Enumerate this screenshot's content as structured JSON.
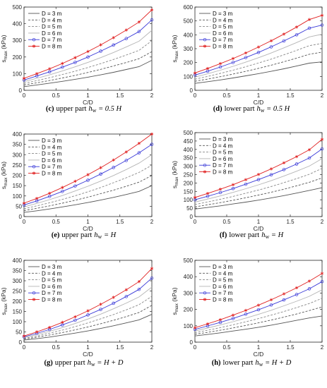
{
  "figure": {
    "panel_count": 6
  },
  "chart_data": [
    {
      "type": "line",
      "caption": {
        "letter": "(c)",
        "text": "upper part",
        "var_h": "h",
        "var_sub": "w",
        "rest": " = 0.5 H"
      },
      "xlabel": "C/D",
      "ylabel": "s",
      "ylabel_sub": "max",
      "ylabel_unit": " (kPa)",
      "xlim": [
        0,
        2
      ],
      "ylim": [
        0,
        500
      ],
      "xticks": [
        "0",
        "0.5",
        "1",
        "1.5",
        "2"
      ],
      "yticks": [
        "0",
        "100",
        "200",
        "300",
        "400",
        "500"
      ],
      "legend": {
        "placement": "top-left",
        "entries": [
          "D = 3 m",
          "D = 4 m",
          "D = 5 m",
          "D = 6 m",
          "D = 7 m",
          "D = 8 m"
        ]
      },
      "x": [
        0,
        0.2,
        0.4,
        0.6,
        0.8,
        1.0,
        1.2,
        1.4,
        1.6,
        1.8,
        2.0
      ],
      "series": [
        {
          "name": "D = 3 m",
          "values": [
            22,
            32,
            43,
            54,
            66,
            79,
            93,
            108,
            125,
            142,
            180
          ]
        },
        {
          "name": "D = 4 m",
          "values": [
            32,
            45,
            59,
            74,
            90,
            107,
            126,
            146,
            167,
            190,
            232
          ]
        },
        {
          "name": "D = 5 m",
          "values": [
            42,
            58,
            76,
            95,
            115,
            137,
            160,
            185,
            212,
            240,
            298
          ]
        },
        {
          "name": "D = 6 m",
          "values": [
            52,
            72,
            93,
            116,
            141,
            168,
            196,
            227,
            260,
            295,
            360
          ]
        },
        {
          "name": "D = 7 m",
          "values": [
            62,
            86,
            111,
            139,
            168,
            200,
            235,
            272,
            311,
            353,
            423
          ]
        },
        {
          "name": "D = 8 m",
          "values": [
            72,
            100,
            129,
            161,
            196,
            233,
            273,
            316,
            362,
            410,
            483
          ]
        }
      ]
    },
    {
      "type": "line",
      "caption": {
        "letter": "(d)",
        "text": "lower part",
        "var_h": "h",
        "var_sub": "w",
        "rest": " = 0.5 H"
      },
      "xlabel": "C/D",
      "ylabel": "s",
      "ylabel_sub": "max",
      "ylabel_unit": " (kPa)",
      "xlim": [
        0,
        2
      ],
      "ylim": [
        0,
        600
      ],
      "xticks": [
        "0",
        "0.5",
        "1",
        "1.5",
        "2"
      ],
      "yticks": [
        "0",
        "100",
        "200",
        "300",
        "400",
        "500",
        "600"
      ],
      "legend": {
        "placement": "top-left",
        "entries": [
          "D = 3 m",
          "D = 4 m",
          "D = 5 m",
          "D = 6 m",
          "D = 7 m",
          "D = 8 m"
        ]
      },
      "x": [
        0,
        0.2,
        0.4,
        0.6,
        0.8,
        1.0,
        1.2,
        1.4,
        1.6,
        1.8,
        2.0
      ],
      "series": [
        {
          "name": "D = 3 m",
          "values": [
            50,
            62,
            75,
            89,
            104,
            120,
            137,
            155,
            175,
            196,
            205
          ]
        },
        {
          "name": "D = 4 m",
          "values": [
            65,
            81,
            98,
            117,
            137,
            158,
            181,
            206,
            232,
            260,
            275
          ]
        },
        {
          "name": "D = 5 m",
          "values": [
            80,
            100,
            122,
            145,
            170,
            197,
            225,
            256,
            288,
            322,
            338
          ]
        },
        {
          "name": "D = 6 m",
          "values": [
            95,
            119,
            145,
            173,
            203,
            235,
            269,
            306,
            344,
            385,
            404
          ]
        },
        {
          "name": "D = 7 m",
          "values": [
            110,
            138,
            168,
            201,
            236,
            273,
            313,
            356,
            400,
            448,
            470
          ]
        },
        {
          "name": "D = 8 m",
          "values": [
            125,
            157,
            192,
            229,
            269,
            312,
            357,
            405,
            456,
            510,
            540
          ]
        }
      ]
    },
    {
      "type": "line",
      "caption": {
        "letter": "(e)",
        "text": "upper part",
        "var_h": "h",
        "var_sub": "w",
        "rest": " = H"
      },
      "xlabel": "C/D",
      "ylabel": "s",
      "ylabel_sub": "max",
      "ylabel_unit": " (kPa)",
      "xlim": [
        0,
        2
      ],
      "ylim": [
        0,
        400
      ],
      "xticks": [
        "0",
        "0.5",
        "1",
        "1.5",
        "2"
      ],
      "yticks": [
        "0",
        "50",
        "100",
        "150",
        "200",
        "250",
        "300",
        "350",
        "400"
      ],
      "legend": {
        "placement": "top-left",
        "entries": [
          "D = 3 m",
          "D = 4 m",
          "D = 5 m",
          "D = 6 m",
          "D = 7 m",
          "D = 8 m"
        ]
      },
      "x": [
        0,
        0.2,
        0.4,
        0.6,
        0.8,
        1.0,
        1.2,
        1.4,
        1.6,
        1.8,
        2.0
      ],
      "series": [
        {
          "name": "D = 3 m",
          "values": [
            20,
            28,
            37,
            47,
            57,
            68,
            80,
            93,
            107,
            122,
            150
          ]
        },
        {
          "name": "D = 4 m",
          "values": [
            29,
            40,
            52,
            65,
            79,
            94,
            111,
            128,
            147,
            167,
            199
          ]
        },
        {
          "name": "D = 5 m",
          "values": [
            38,
            52,
            67,
            83,
            101,
            120,
            141,
            164,
            188,
            214,
            249
          ]
        },
        {
          "name": "D = 6 m",
          "values": [
            47,
            64,
            82,
            102,
            124,
            147,
            172,
            199,
            228,
            259,
            300
          ]
        },
        {
          "name": "D = 7 m",
          "values": [
            56,
            76,
            98,
            122,
            148,
            176,
            206,
            238,
            272,
            309,
            350
          ]
        },
        {
          "name": "D = 8 m",
          "values": [
            65,
            88,
            113,
            141,
            171,
            203,
            237,
            274,
            313,
            355,
            400
          ]
        }
      ]
    },
    {
      "type": "line",
      "caption": {
        "letter": "(f)",
        "text": "lower part",
        "var_h": "h",
        "var_sub": "w",
        "rest": " = H"
      },
      "xlabel": "C/D",
      "ylabel": "s",
      "ylabel_sub": "max",
      "ylabel_unit": " (kPa)",
      "xlim": [
        0,
        2
      ],
      "ylim": [
        0,
        500
      ],
      "xticks": [
        "0",
        "0.5",
        "1",
        "1.5",
        "2"
      ],
      "yticks": [
        "0",
        "50",
        "100",
        "150",
        "200",
        "250",
        "300",
        "350",
        "400",
        "450",
        "500"
      ],
      "legend": {
        "placement": "top-left",
        "entries": [
          "D = 3 m",
          "D = 4 m",
          "D = 5 m",
          "D = 6 m",
          "D = 7 m",
          "D = 8 m"
        ]
      },
      "x": [
        0,
        0.2,
        0.4,
        0.6,
        0.8,
        1.0,
        1.2,
        1.4,
        1.6,
        1.8,
        2.0
      ],
      "series": [
        {
          "name": "D = 3 m",
          "values": [
            45,
            54,
            64,
            75,
            86,
            98,
            111,
            125,
            140,
            156,
            172
          ]
        },
        {
          "name": "D = 4 m",
          "values": [
            58,
            70,
            83,
            97,
            112,
            128,
            145,
            163,
            183,
            204,
            230
          ]
        },
        {
          "name": "D = 5 m",
          "values": [
            72,
            87,
            103,
            120,
            139,
            158,
            179,
            202,
            226,
            252,
            287
          ]
        },
        {
          "name": "D = 6 m",
          "values": [
            86,
            104,
            123,
            144,
            166,
            189,
            214,
            241,
            270,
            301,
            345
          ]
        },
        {
          "name": "D = 7 m",
          "values": [
            100,
            121,
            143,
            167,
            193,
            220,
            249,
            280,
            313,
            349,
            403
          ]
        },
        {
          "name": "D = 8 m",
          "values": [
            114,
            138,
            163,
            190,
            220,
            251,
            284,
            320,
            357,
            398,
            460
          ]
        }
      ]
    },
    {
      "type": "line",
      "caption": {
        "letter": "(g)",
        "text": "upper part",
        "var_h": "h",
        "var_sub": "w",
        "rest": " = H + D"
      },
      "xlabel": "C/D",
      "ylabel": "s",
      "ylabel_sub": "max",
      "ylabel_unit": " (kPa)",
      "xlim": [
        0,
        2
      ],
      "ylim": [
        0,
        400
      ],
      "xticks": [
        "0",
        "0.5",
        "1",
        "1.5",
        "2"
      ],
      "yticks": [
        "0",
        "50",
        "100",
        "150",
        "200",
        "250",
        "300",
        "350",
        "400"
      ],
      "legend": {
        "placement": "top-left",
        "entries": [
          "D = 3 m",
          "D = 4 m",
          "D = 5 m",
          "D = 6 m",
          "D = 7 m",
          "D = 8 m"
        ]
      },
      "x": [
        0,
        0.2,
        0.4,
        0.6,
        0.8,
        1.0,
        1.2,
        1.4,
        1.6,
        1.8,
        2.0
      ],
      "series": [
        {
          "name": "D = 3 m",
          "values": [
            10,
            17,
            25,
            34,
            44,
            55,
            67,
            80,
            94,
            109,
            136
          ]
        },
        {
          "name": "D = 4 m",
          "values": [
            14,
            24,
            35,
            47,
            60,
            74,
            90,
            107,
            125,
            145,
            180
          ]
        },
        {
          "name": "D = 5 m",
          "values": [
            18,
            30,
            44,
            59,
            76,
            94,
            114,
            135,
            158,
            183,
            224
          ]
        },
        {
          "name": "D = 6 m",
          "values": [
            22,
            37,
            53,
            71,
            91,
            113,
            137,
            163,
            191,
            221,
            269
          ]
        },
        {
          "name": "D = 7 m",
          "values": [
            26,
            43,
            62,
            84,
            107,
            133,
            160,
            190,
            223,
            258,
            313
          ]
        },
        {
          "name": "D = 8 m",
          "values": [
            30,
            50,
            72,
            97,
            124,
            153,
            185,
            219,
            256,
            296,
            360
          ]
        }
      ]
    },
    {
      "type": "line",
      "caption": {
        "letter": "(h)",
        "text": "lower part",
        "var_h": "h",
        "var_sub": "w",
        "rest": " = H + D"
      },
      "xlabel": "C/D",
      "ylabel": "s",
      "ylabel_sub": "max",
      "ylabel_unit": " (kPa)",
      "xlim": [
        0,
        2
      ],
      "ylim": [
        0,
        500
      ],
      "xticks": [
        "0",
        "0.5",
        "1",
        "1.5",
        "2"
      ],
      "yticks": [
        "0",
        "100",
        "200",
        "300",
        "400",
        "500"
      ],
      "legend": {
        "placement": "top-left",
        "entries": [
          "D = 3 m",
          "D = 4 m",
          "D = 5 m",
          "D = 6 m",
          "D = 7 m",
          "D = 8 m"
        ]
      },
      "x": [
        0,
        0.2,
        0.4,
        0.6,
        0.8,
        1.0,
        1.2,
        1.4,
        1.6,
        1.8,
        2.0
      ],
      "series": [
        {
          "name": "D = 3 m",
          "values": [
            38,
            47,
            57,
            68,
            79,
            91,
            104,
            118,
            133,
            148,
            160
          ]
        },
        {
          "name": "D = 4 m",
          "values": [
            48,
            60,
            73,
            87,
            102,
            118,
            135,
            153,
            172,
            193,
            215
          ]
        },
        {
          "name": "D = 5 m",
          "values": [
            58,
            73,
            89,
            106,
            124,
            144,
            165,
            187,
            211,
            236,
            268
          ]
        },
        {
          "name": "D = 6 m",
          "values": [
            68,
            86,
            105,
            125,
            147,
            170,
            195,
            222,
            250,
            280,
            320
          ]
        },
        {
          "name": "D = 7 m",
          "values": [
            78,
            99,
            121,
            145,
            171,
            198,
            227,
            258,
            291,
            326,
            370
          ]
        },
        {
          "name": "D = 8 m",
          "values": [
            88,
            112,
            137,
            165,
            194,
            226,
            259,
            295,
            332,
            373,
            420
          ]
        }
      ]
    }
  ],
  "series_styles": [
    {
      "color": "#555555",
      "dash": "",
      "marker": "none"
    },
    {
      "color": "#555555",
      "dash": "3,2",
      "marker": "none"
    },
    {
      "color": "#888888",
      "dash": "3,2",
      "marker": "none"
    },
    {
      "color": "#b5b5b5",
      "dash": "",
      "marker": "none"
    },
    {
      "color": "#3a3ad8",
      "dash": "",
      "marker": "circle"
    },
    {
      "color": "#e02020",
      "dash": "",
      "marker": "star"
    }
  ]
}
